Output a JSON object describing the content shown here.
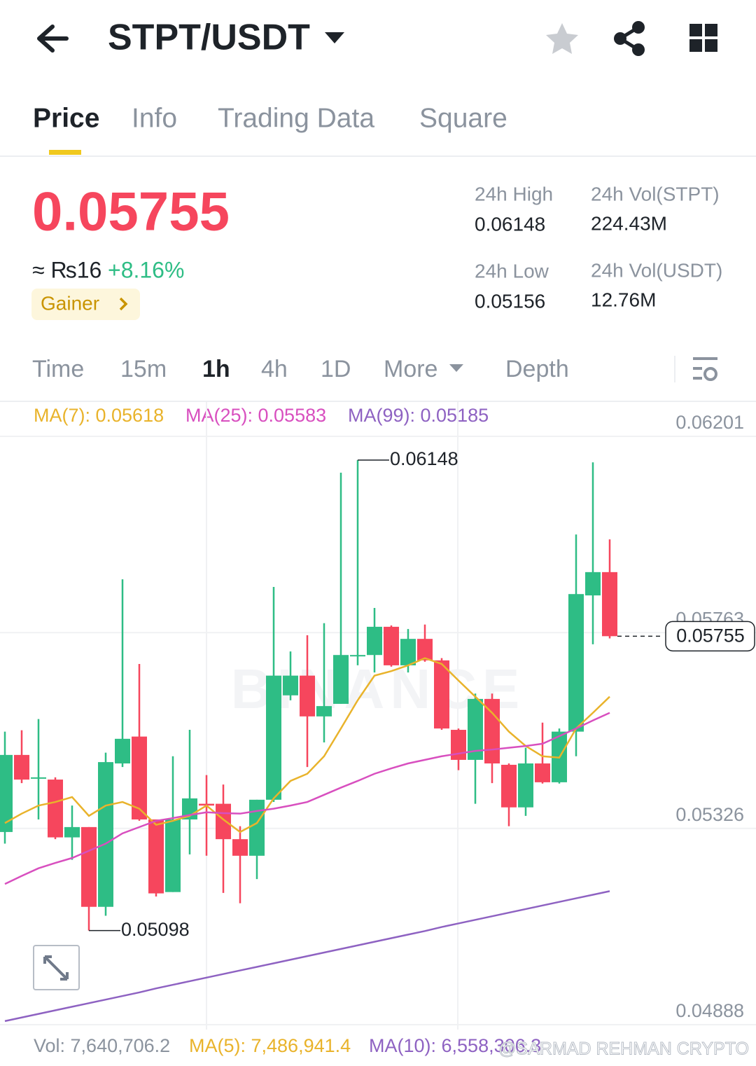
{
  "header": {
    "title": "STPT/USDT"
  },
  "tabs": [
    "Price",
    "Info",
    "Trading Data",
    "Square"
  ],
  "price": {
    "last": "0.05755",
    "fiat": "≈ ₨16",
    "change": "+8.16%",
    "badge": "Gainer"
  },
  "stats": [
    {
      "label": "24h High",
      "value": "0.06148"
    },
    {
      "label": "24h Vol(STPT)",
      "value": "224.43M"
    },
    {
      "label": "24h Low",
      "value": "0.05156"
    },
    {
      "label": "24h Vol(USDT)",
      "value": "12.76M"
    }
  ],
  "intervals": [
    "Time",
    "15m",
    "1h",
    "4h",
    "1D",
    "More",
    "Depth"
  ],
  "ma_legend": [
    "MA(7): 0.05618",
    "MA(25): 0.05583",
    "MA(99): 0.05185"
  ],
  "chart_data": {
    "type": "candlestick",
    "up_color": "#2ebd85",
    "down_color": "#f6465d",
    "open": [
      0.05318,
      0.0549,
      0.05437,
      0.05435,
      0.05306,
      0.05329,
      0.05151,
      0.05471,
      0.05531,
      0.05346,
      0.05184,
      0.05346,
      0.05381,
      0.05381,
      0.05302,
      0.05265,
      0.0539,
      0.05623,
      0.05667,
      0.05576,
      0.05604,
      0.0571,
      0.05713,
      0.05776,
      0.0569,
      0.05749,
      0.05701,
      0.05546,
      0.05479,
      0.05615,
      0.05468,
      0.05373,
      0.05471,
      0.05429,
      0.05542,
      0.05846,
      0.05898
    ],
    "high": [
      0.05542,
      0.05545,
      0.0557,
      0.0544,
      0.05377,
      0.05329,
      0.05495,
      0.05882,
      0.05693,
      0.05346,
      0.05487,
      0.05546,
      0.05445,
      0.05424,
      0.05331,
      0.0539,
      0.05865,
      0.05721,
      0.05757,
      0.05784,
      0.0612,
      0.06148,
      0.05818,
      0.05779,
      0.05771,
      0.05781,
      0.05706,
      0.05549,
      0.05627,
      0.05627,
      0.05471,
      0.05506,
      0.05562,
      0.05549,
      0.05982,
      0.06143,
      0.05971
    ],
    "low": [
      0.05292,
      0.05427,
      0.05346,
      0.05302,
      0.05256,
      0.05098,
      0.05131,
      0.05463,
      0.05343,
      0.05174,
      0.05184,
      0.05268,
      0.05265,
      0.05182,
      0.05159,
      0.05213,
      0.05385,
      0.05612,
      0.05463,
      0.05518,
      0.05604,
      0.0569,
      0.05674,
      0.05687,
      0.05674,
      0.05698,
      0.05546,
      0.05456,
      0.05381,
      0.05427,
      0.05331,
      0.05354,
      0.05426,
      0.05426,
      0.05487,
      0.05737,
      0.0575
    ],
    "close": [
      0.0549,
      0.05435,
      0.0544,
      0.05306,
      0.05329,
      0.05151,
      0.05474,
      0.05526,
      0.05346,
      0.05181,
      0.05346,
      0.05393,
      0.05377,
      0.05302,
      0.05265,
      0.0539,
      0.05667,
      0.05667,
      0.05576,
      0.05599,
      0.05713,
      0.05713,
      0.05776,
      0.0569,
      0.05749,
      0.05701,
      0.05549,
      0.05479,
      0.05615,
      0.05471,
      0.05373,
      0.05471,
      0.05429,
      0.05542,
      0.05849,
      0.05898,
      0.05755
    ],
    "series": [
      {
        "color": "#e9b32b",
        "values": [
          0.05338,
          0.05359,
          0.05377,
          0.05385,
          0.05396,
          0.05354,
          0.05377,
          0.05385,
          0.0537,
          0.05334,
          0.05343,
          0.05354,
          0.05377,
          0.05346,
          0.05318,
          0.05338,
          0.05393,
          0.05432,
          0.05448,
          0.05487,
          0.05549,
          0.05612,
          0.05667,
          0.05677,
          0.0569,
          0.05706,
          0.05693,
          0.05656,
          0.0562,
          0.05584,
          0.05542,
          0.0551,
          0.05487,
          0.05484,
          0.05549,
          0.05584,
          0.0562
        ]
      },
      {
        "color": "#d84fbf",
        "values": [
          0.05202,
          0.0522,
          0.05237,
          0.05249,
          0.0526,
          0.05276,
          0.05292,
          0.05315,
          0.05329,
          0.05343,
          0.05349,
          0.05356,
          0.05362,
          0.0536,
          0.05359,
          0.05365,
          0.0537,
          0.05377,
          0.05385,
          0.05401,
          0.05417,
          0.05432,
          0.05448,
          0.0546,
          0.05471,
          0.05479,
          0.05487,
          0.05493,
          0.05499,
          0.05502,
          0.05506,
          0.0551,
          0.05515,
          0.05532,
          0.05549,
          0.05567,
          0.05584
        ]
      },
      {
        "color": "#8e62c2",
        "values": [
          0.04896,
          0.04904,
          0.04912,
          0.0492,
          0.04928,
          0.04936,
          0.04944,
          0.04952,
          0.0496,
          0.04969,
          0.04977,
          0.04985,
          0.04993,
          0.05001,
          0.05009,
          0.05017,
          0.05025,
          0.05033,
          0.05041,
          0.05049,
          0.05057,
          0.05065,
          0.05073,
          0.05081,
          0.05089,
          0.05097,
          0.05106,
          0.05114,
          0.05122,
          0.0513,
          0.05138,
          0.05146,
          0.05154,
          0.05162,
          0.0517,
          0.05178,
          0.05186
        ]
      }
    ],
    "ylim": [
      0.04888,
      0.06201
    ],
    "yticks": [
      0.06201,
      0.05763,
      0.05326,
      0.04888
    ],
    "grid": true,
    "high_marker": 0.06148,
    "low_marker": 0.05098,
    "watermark": "BINANCE"
  },
  "volume_legend": [
    "Vol: 7,640,706.2",
    "MA(5): 7,486,941.4",
    "MA(10): 6,558,306.3"
  ],
  "watermark": "@SARMAD REHMAN CRYPTO"
}
